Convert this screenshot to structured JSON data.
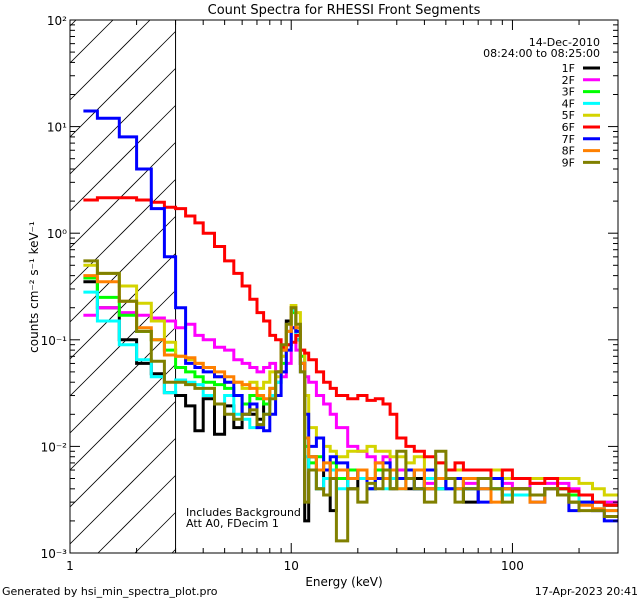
{
  "chart_data": {
    "type": "line",
    "title": "Count Spectra for RHESSI Front Segments",
    "xlabel": "Energy (keV)",
    "ylabel": "counts cm⁻² s⁻¹ keV⁻¹",
    "xscale": "log",
    "yscale": "log",
    "xlim": [
      1,
      300
    ],
    "ylim": [
      0.001,
      100
    ],
    "x_tick_labels": [
      "1",
      "10",
      "100"
    ],
    "x_ticks": [
      1,
      10,
      100
    ],
    "y_tick_labels": [
      "10⁻³",
      "10⁻²",
      "10⁻¹",
      "10⁰",
      "10¹",
      "10²"
    ],
    "y_ticks": [
      0.001,
      0.01,
      0.1,
      1,
      10,
      100
    ],
    "date": "14-Dec-2010",
    "time_range": "08:24:00 to 08:25:00",
    "annotations": [
      "Includes Background",
      "Att A0, FDecim 1"
    ],
    "shaded_region_keV": [
      1,
      3
    ],
    "legend_position": "top-right",
    "energy_edges": [
      1.15,
      1.33,
      1.67,
      2,
      2.33,
      2.67,
      3,
      3.33,
      3.67,
      4,
      4.5,
      5,
      5.5,
      6,
      6.5,
      7,
      7.5,
      8,
      8.5,
      9,
      9.5,
      10,
      10.5,
      11,
      11.5,
      12,
      13,
      14,
      15,
      16,
      18,
      20,
      22,
      24,
      26,
      28,
      30,
      33,
      36,
      40,
      45,
      50,
      55,
      60,
      70,
      80,
      90,
      100,
      120,
      140,
      160,
      180,
      200,
      230,
      260,
      300
    ],
    "series": [
      {
        "name": "1F",
        "color": "#000000",
        "values": [
          0.35,
          0.2,
          0.1,
          0.06,
          0.048,
          0.032,
          0.03,
          0.024,
          0.014,
          0.028,
          0.013,
          0.024,
          0.015,
          0.025,
          0.02,
          0.018,
          0.025,
          0.03,
          0.05,
          0.08,
          0.15,
          0.2,
          0.1,
          0.06,
          0.002,
          0.008,
          0.004,
          0.006,
          0.0025,
          0.005,
          0.004,
          0.006,
          0.004,
          0.005,
          0.006,
          0.004,
          0.005,
          0.004,
          0.005,
          0.004,
          0.004,
          0.005,
          0.004,
          0.003,
          0.004,
          0.004,
          0.0035,
          0.004,
          0.0035,
          0.004,
          0.004,
          0.003,
          0.0035,
          0.003,
          0.0028
        ]
      },
      {
        "name": "2F",
        "color": "#ff00ff",
        "values": [
          0.17,
          0.2,
          0.18,
          0.17,
          0.16,
          0.15,
          0.13,
          0.14,
          0.11,
          0.1,
          0.085,
          0.08,
          0.065,
          0.06,
          0.055,
          0.05,
          0.055,
          0.06,
          0.05,
          0.045,
          0.06,
          0.13,
          0.08,
          0.05,
          0.045,
          0.04,
          0.03,
          0.025,
          0.02,
          0.015,
          0.01,
          0.009,
          0.008,
          0.007,
          0.008,
          0.006,
          0.006,
          0.005,
          0.004,
          0.0045,
          0.005,
          0.004,
          0.005,
          0.0045,
          0.004,
          0.005,
          0.0045,
          0.004,
          0.0045,
          0.0045,
          0.0045,
          0.004,
          0.0035,
          0.003,
          0.003
        ]
      },
      {
        "name": "3F",
        "color": "#00ff00",
        "values": [
          0.38,
          0.25,
          0.17,
          0.12,
          0.1,
          0.08,
          0.055,
          0.05,
          0.045,
          0.04,
          0.038,
          0.035,
          0.03,
          0.025,
          0.03,
          0.028,
          0.025,
          0.035,
          0.04,
          0.06,
          0.09,
          0.18,
          0.12,
          0.07,
          0.01,
          0.007,
          0.008,
          0.006,
          0.007,
          0.005,
          0.006,
          0.006,
          0.005,
          0.006,
          0.005,
          0.005,
          0.005,
          0.006,
          0.004,
          0.005,
          0.004,
          0.005,
          0.004,
          0.004,
          0.005,
          0.004,
          0.004,
          0.004,
          0.0035,
          0.004,
          0.004,
          0.0035,
          0.003,
          0.003,
          0.0028
        ]
      },
      {
        "name": "4F",
        "color": "#00ffff",
        "values": [
          0.28,
          0.15,
          0.09,
          0.065,
          0.045,
          0.032,
          0.042,
          0.04,
          0.038,
          0.03,
          0.025,
          0.03,
          0.02,
          0.018,
          0.015,
          0.016,
          0.02,
          0.03,
          0.04,
          0.07,
          0.12,
          0.19,
          0.1,
          0.05,
          0.008,
          0.006,
          0.004,
          0.005,
          0.006,
          0.004,
          0.005,
          0.005,
          0.004,
          0.005,
          0.004,
          0.005,
          0.004,
          0.005,
          0.004,
          0.005,
          0.004,
          0.004,
          0.004,
          0.004,
          0.004,
          0.004,
          0.0035,
          0.0035,
          0.0035,
          0.004,
          0.0035,
          0.003,
          0.0035,
          0.003,
          0.0025
        ]
      },
      {
        "name": "5F",
        "color": "#d4d400",
        "values": [
          0.5,
          0.42,
          0.32,
          0.22,
          0.15,
          0.095,
          0.07,
          0.065,
          0.06,
          0.055,
          0.045,
          0.04,
          0.04,
          0.035,
          0.04,
          0.035,
          0.04,
          0.05,
          0.045,
          0.07,
          0.12,
          0.21,
          0.18,
          0.08,
          0.03,
          0.015,
          0.012,
          0.01,
          0.009,
          0.008,
          0.009,
          0.009,
          0.01,
          0.009,
          0.009,
          0.008,
          0.008,
          0.007,
          0.008,
          0.006,
          0.007,
          0.006,
          0.006,
          0.006,
          0.006,
          0.006,
          0.005,
          0.005,
          0.005,
          0.005,
          0.005,
          0.005,
          0.0045,
          0.004,
          0.0035
        ]
      },
      {
        "name": "6F",
        "color": "#ff0000",
        "values": [
          2.05,
          2.15,
          2.15,
          2.05,
          1.95,
          1.75,
          1.7,
          1.45,
          1.25,
          1.0,
          0.75,
          0.55,
          0.42,
          0.32,
          0.24,
          0.18,
          0.15,
          0.11,
          0.1,
          0.085,
          0.09,
          0.095,
          0.11,
          0.08,
          0.075,
          0.065,
          0.05,
          0.04,
          0.035,
          0.03,
          0.028,
          0.03,
          0.027,
          0.028,
          0.025,
          0.02,
          0.012,
          0.01,
          0.009,
          0.008,
          0.007,
          0.006,
          0.007,
          0.006,
          0.006,
          0.005,
          0.006,
          0.005,
          0.0045,
          0.005,
          0.004,
          0.0038,
          0.0035,
          0.003,
          0.0028
        ]
      },
      {
        "name": "7F",
        "color": "#0000ff",
        "values": [
          14,
          12,
          8,
          4,
          1.7,
          0.6,
          0.2,
          0.06,
          0.055,
          0.05,
          0.045,
          0.04,
          0.03,
          0.02,
          0.025,
          0.015,
          0.014,
          0.02,
          0.03,
          0.05,
          0.08,
          0.13,
          0.12,
          0.06,
          0.02,
          0.01,
          0.012,
          0.006,
          0.008,
          0.007,
          0.005,
          0.006,
          0.004,
          0.005,
          0.007,
          0.006,
          0.005,
          0.006,
          0.004,
          0.006,
          0.005,
          0.004,
          0.005,
          0.004,
          0.003,
          0.005,
          0.004,
          0.004,
          0.003,
          0.004,
          0.0035,
          0.0025,
          0.003,
          0.0025,
          0.002
        ]
      },
      {
        "name": "8F",
        "color": "#ff8000",
        "values": [
          0.4,
          0.35,
          0.23,
          0.13,
          0.1,
          0.072,
          0.07,
          0.068,
          0.06,
          0.055,
          0.05,
          0.045,
          0.04,
          0.038,
          0.035,
          0.03,
          0.028,
          0.035,
          0.05,
          0.08,
          0.12,
          0.2,
          0.13,
          0.06,
          0.012,
          0.008,
          0.006,
          0.007,
          0.005,
          0.006,
          0.005,
          0.006,
          0.005,
          0.007,
          0.005,
          0.006,
          0.004,
          0.005,
          0.006,
          0.004,
          0.005,
          0.005,
          0.004,
          0.005,
          0.004,
          0.003,
          0.004,
          0.004,
          0.003,
          0.004,
          0.0035,
          0.003,
          0.0028,
          0.0026,
          0.0025
        ]
      },
      {
        "name": "9F",
        "color": "#808000",
        "values": [
          0.55,
          0.42,
          0.23,
          0.12,
          0.063,
          0.04,
          0.04,
          0.038,
          0.035,
          0.035,
          0.025,
          0.02,
          0.018,
          0.02,
          0.022,
          0.016,
          0.02,
          0.028,
          0.05,
          0.09,
          0.14,
          0.2,
          0.14,
          0.05,
          0.003,
          0.006,
          0.004,
          0.0035,
          0.005,
          0.0013,
          0.004,
          0.003,
          0.0045,
          0.004,
          0.006,
          0.004,
          0.009,
          0.005,
          0.004,
          0.003,
          0.009,
          0.005,
          0.003,
          0.004,
          0.005,
          0.004,
          0.003,
          0.004,
          0.0035,
          0.004,
          0.0035,
          0.003,
          0.0025,
          0.0025,
          0.0022
        ]
      }
    ]
  },
  "footer": {
    "generated_by": "Generated by hsi_min_spectra_plot.pro",
    "timestamp": "17-Apr-2023 20:41"
  }
}
